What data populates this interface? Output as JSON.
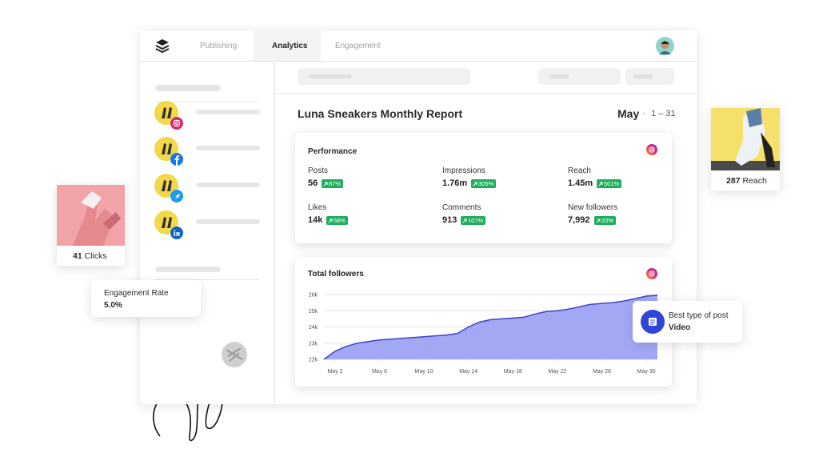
{
  "nav": {
    "tabs": [
      "Publishing",
      "Analytics",
      "Engagement"
    ]
  },
  "report": {
    "title": "Luna Sneakers Monthly Report",
    "month": "May",
    "range": "1 – 31"
  },
  "performance": {
    "title": "Performance",
    "metrics": [
      {
        "label": "Posts",
        "value": "56",
        "change": "87%"
      },
      {
        "label": "Impressions",
        "value": "1.76m",
        "change": "305%"
      },
      {
        "label": "Reach",
        "value": "1.45m",
        "change": "501%"
      },
      {
        "label": "Likes",
        "value": "14k",
        "change": "58%"
      },
      {
        "label": "Comments",
        "value": "913",
        "change": "107%"
      },
      {
        "label": "New followers",
        "value": "7,992",
        "change": "20%"
      }
    ]
  },
  "chart_data": {
    "type": "area",
    "title": "Total followers",
    "x": [
      1,
      2,
      3,
      4,
      5,
      6,
      7,
      8,
      9,
      10,
      11,
      12,
      13,
      14,
      15,
      16,
      17,
      18,
      19,
      20,
      21,
      22,
      23,
      24,
      25,
      26,
      27,
      28,
      29,
      30,
      31
    ],
    "values": [
      22000,
      22500,
      22800,
      23000,
      23100,
      23200,
      23250,
      23300,
      23350,
      23400,
      23450,
      23500,
      23600,
      24000,
      24300,
      24450,
      24500,
      24550,
      24600,
      24800,
      24950,
      25000,
      25100,
      25250,
      25400,
      25450,
      25500,
      25600,
      25750,
      25900,
      25950
    ],
    "color": "#a3a8f5",
    "line_color": "#3b46c4",
    "xlim": [
      1,
      31
    ],
    "ylim": [
      22000,
      26000
    ],
    "xticks": [
      {
        "value": 2,
        "label": "May 2"
      },
      {
        "value": 6,
        "label": "May 6"
      },
      {
        "value": 10,
        "label": "May 10"
      },
      {
        "value": 14,
        "label": "May 14"
      },
      {
        "value": 18,
        "label": "May 18"
      },
      {
        "value": 22,
        "label": "May 22"
      },
      {
        "value": 26,
        "label": "May 26"
      },
      {
        "value": 30,
        "label": "May 30"
      }
    ],
    "yticks": [
      {
        "value": 22000,
        "label": "22k"
      },
      {
        "value": 23000,
        "label": "23k"
      },
      {
        "value": 24000,
        "label": "24k"
      },
      {
        "value": 25000,
        "label": "25k"
      },
      {
        "value": 26000,
        "label": "26k"
      }
    ],
    "grid": true
  },
  "floating": {
    "clicks": {
      "value": "41",
      "label": "Clicks"
    },
    "engagement": {
      "label": "Engagement Rate",
      "value": "5.0%"
    },
    "reach": {
      "value": "287",
      "label": "Reach"
    },
    "post_type": {
      "label": "Best type of post",
      "value": "Video"
    }
  }
}
